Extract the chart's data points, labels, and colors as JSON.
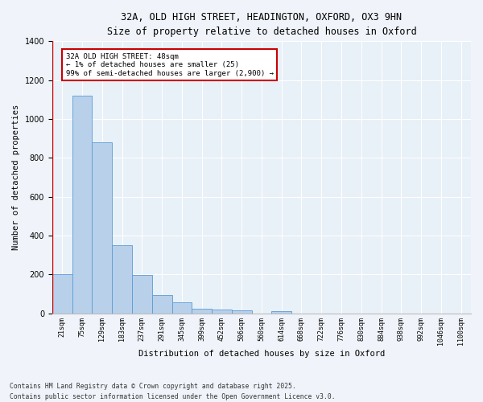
{
  "title_line1": "32A, OLD HIGH STREET, HEADINGTON, OXFORD, OX3 9HN",
  "title_line2": "Size of property relative to detached houses in Oxford",
  "xlabel": "Distribution of detached houses by size in Oxford",
  "ylabel": "Number of detached properties",
  "bar_values": [
    200,
    1120,
    880,
    350,
    195,
    95,
    55,
    22,
    20,
    15,
    0,
    10,
    0,
    0,
    0,
    0,
    0,
    0,
    0,
    0,
    0
  ],
  "bar_labels": [
    "21sqm",
    "75sqm",
    "129sqm",
    "183sqm",
    "237sqm",
    "291sqm",
    "345sqm",
    "399sqm",
    "452sqm",
    "506sqm",
    "560sqm",
    "614sqm",
    "668sqm",
    "722sqm",
    "776sqm",
    "830sqm",
    "884sqm",
    "938sqm",
    "992sqm",
    "1046sqm",
    "1100sqm"
  ],
  "bar_color": "#b8d0ea",
  "bar_edge_color": "#5b9bd5",
  "bg_color": "#e8f0f8",
  "grid_color": "#ffffff",
  "annotation_text": "32A OLD HIGH STREET: 48sqm\n← 1% of detached houses are smaller (25)\n99% of semi-detached houses are larger (2,900) →",
  "annotation_box_color": "#ffffff",
  "annotation_box_edge": "#cc0000",
  "red_line_color": "#cc0000",
  "ylim": [
    0,
    1400
  ],
  "yticks": [
    0,
    200,
    400,
    600,
    800,
    1000,
    1200,
    1400
  ],
  "footer_line1": "Contains HM Land Registry data © Crown copyright and database right 2025.",
  "footer_line2": "Contains public sector information licensed under the Open Government Licence v3.0."
}
